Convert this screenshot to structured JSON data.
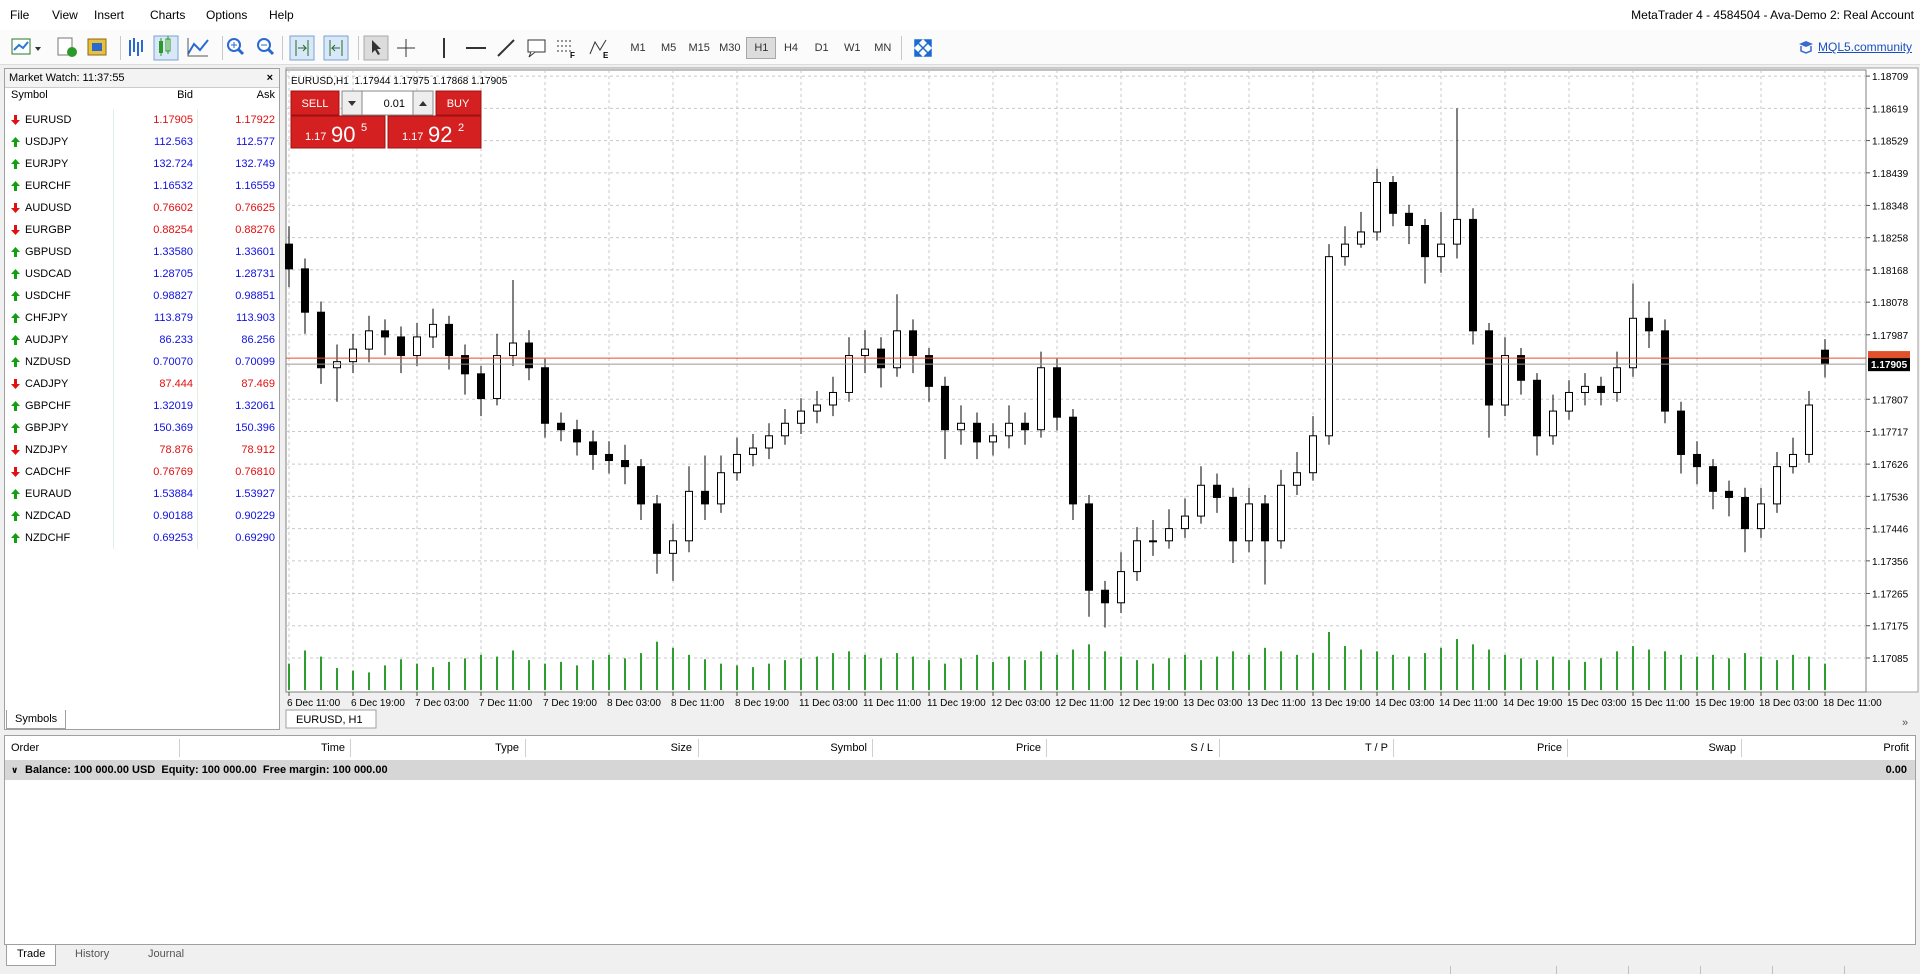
{
  "menu": [
    "File",
    "View",
    "Insert",
    "Charts",
    "Options",
    "Help"
  ],
  "window_title": "MetaTrader 4 - 4584504 - Ava-Demo 2: Real Account",
  "toolbar": {
    "timeframes": [
      "M1",
      "M5",
      "M15",
      "M30",
      "H1",
      "H4",
      "D1",
      "W1",
      "MN"
    ],
    "active": "H1",
    "community_link": "MQL5.community"
  },
  "market_watch": {
    "title": "Market Watch: 11:37:55",
    "columns": [
      "Symbol",
      "Bid",
      "Ask"
    ],
    "tab": "Symbols",
    "rows": [
      {
        "symbol": "EURUSD",
        "direction": "down",
        "bid": "1.17905",
        "ask": "1.17922"
      },
      {
        "symbol": "USDJPY",
        "direction": "up",
        "bid": "112.563",
        "ask": "112.577"
      },
      {
        "symbol": "EURJPY",
        "direction": "up",
        "bid": "132.724",
        "ask": "132.749"
      },
      {
        "symbol": "EURCHF",
        "direction": "up",
        "bid": "1.16532",
        "ask": "1.16559"
      },
      {
        "symbol": "AUDUSD",
        "direction": "down",
        "bid": "0.76602",
        "ask": "0.76625"
      },
      {
        "symbol": "EURGBP",
        "direction": "down",
        "bid": "0.88254",
        "ask": "0.88276"
      },
      {
        "symbol": "GBPUSD",
        "direction": "up",
        "bid": "1.33580",
        "ask": "1.33601"
      },
      {
        "symbol": "USDCAD",
        "direction": "up",
        "bid": "1.28705",
        "ask": "1.28731"
      },
      {
        "symbol": "USDCHF",
        "direction": "up",
        "bid": "0.98827",
        "ask": "0.98851"
      },
      {
        "symbol": "CHFJPY",
        "direction": "up",
        "bid": "113.879",
        "ask": "113.903"
      },
      {
        "symbol": "AUDJPY",
        "direction": "up",
        "bid": "86.233",
        "ask": "86.256"
      },
      {
        "symbol": "NZDUSD",
        "direction": "up",
        "bid": "0.70070",
        "ask": "0.70099"
      },
      {
        "symbol": "CADJPY",
        "direction": "down",
        "bid": "87.444",
        "ask": "87.469"
      },
      {
        "symbol": "GBPCHF",
        "direction": "up",
        "bid": "1.32019",
        "ask": "1.32061"
      },
      {
        "symbol": "GBPJPY",
        "direction": "up",
        "bid": "150.369",
        "ask": "150.396"
      },
      {
        "symbol": "NZDJPY",
        "direction": "down",
        "bid": "78.876",
        "ask": "78.912"
      },
      {
        "symbol": "CADCHF",
        "direction": "down",
        "bid": "0.76769",
        "ask": "0.76810"
      },
      {
        "symbol": "EURAUD",
        "direction": "up",
        "bid": "1.53884",
        "ask": "1.53927"
      },
      {
        "symbol": "NZDCAD",
        "direction": "up",
        "bid": "0.90188",
        "ask": "0.90229"
      },
      {
        "symbol": "NZDCHF",
        "direction": "up",
        "bid": "0.69253",
        "ask": "0.69290"
      }
    ]
  },
  "trade_panel": {
    "sell": "SELL",
    "buy": "BUY",
    "lot": "0.01",
    "sell_price": [
      "1.17",
      "90",
      "5"
    ],
    "buy_price": [
      "1.17",
      "92",
      "2"
    ]
  },
  "chart_data": {
    "type": "candlestick",
    "info": "EURUSD,H1  1.17944 1.17975 1.17868 1.17905",
    "tab": "EURUSD, H1",
    "colors": {
      "bull": "#ffffff",
      "bear": "#000000",
      "outline": "#000000",
      "volume": "#2f9e2f",
      "bid_line": "#e0502a",
      "grid": "#c8c8c8"
    },
    "grid": true,
    "x": [
      "6 Dec 11:00",
      null,
      null,
      null,
      "6 Dec 19:00",
      null,
      null,
      null,
      "7 Dec 03:00",
      null,
      null,
      null,
      "7 Dec 11:00",
      null,
      null,
      null,
      "7 Dec 19:00",
      null,
      null,
      null,
      "8 Dec 03:00",
      null,
      null,
      null,
      "8 Dec 11:00",
      null,
      null,
      null,
      "8 Dec 19:00",
      null,
      null,
      null,
      "11 Dec 03:00",
      null,
      null,
      null,
      "11 Dec 11:00",
      null,
      null,
      null,
      "11 Dec 19:00",
      null,
      null,
      null,
      "12 Dec 03:00",
      null,
      null,
      null,
      "12 Dec 11:00",
      null,
      null,
      null,
      "12 Dec 19:00",
      null,
      null,
      null,
      "13 Dec 03:00",
      null,
      null,
      null,
      "13 Dec 11:00",
      null,
      null,
      null,
      "13 Dec 19:00",
      null,
      null,
      null,
      "14 Dec 03:00",
      null,
      null,
      null,
      "14 Dec 11:00",
      null,
      null,
      null,
      "14 Dec 19:00",
      null,
      null,
      null,
      "15 Dec 03:00",
      null,
      null,
      null,
      "15 Dec 11:00",
      null,
      null,
      null,
      "15 Dec 19:00",
      null,
      null,
      null,
      "18 Dec 03:00",
      null,
      null,
      null,
      "18 Dec 11:00"
    ],
    "open": [
      1.1824,
      1.18171,
      1.1805,
      1.17895,
      1.17912,
      1.17947,
      1.17998,
      1.17981,
      1.17929,
      1.17981,
      1.18016,
      1.17929,
      1.17878,
      1.17809,
      1.17929,
      1.17964,
      1.17895,
      1.1774,
      1.17722,
      1.17688,
      1.17653,
      1.17636,
      1.17619,
      1.17515,
      1.17377,
      1.17412,
      1.1755,
      1.17515,
      1.17602,
      1.17653,
      1.17671,
      1.17705,
      1.1774,
      1.17774,
      1.17791,
      1.17826,
      1.17929,
      1.17947,
      1.17895,
      1.17998,
      1.17929,
      1.17843,
      1.17722,
      1.1774,
      1.17688,
      1.17705,
      1.1774,
      1.17722,
      1.17895,
      1.17757,
      1.17515,
      1.17274,
      1.17239,
      1.17326,
      1.17412,
      1.17412,
      1.17446,
      1.17481,
      1.17567,
      1.17533,
      1.17412,
      1.17515,
      1.17412,
      1.17567,
      1.17602,
      1.17705,
      1.18205,
      1.1824,
      1.18274,
      1.18412,
      1.18326,
      1.18292,
      1.18205,
      1.1824,
      1.18309,
      1.17998,
      1.17791,
      1.17929,
      1.1786,
      1.17705,
      1.17774,
      1.17826,
      1.17843,
      1.17826,
      1.17895,
      1.18033,
      1.17998,
      1.17774,
      1.17653,
      1.17619,
      1.1755,
      1.17533,
      1.17446,
      1.17515,
      1.17619,
      1.17653,
      1.17944
    ],
    "high": [
      1.1829,
      1.182,
      1.1808,
      1.1796,
      1.1799,
      1.1804,
      1.1803,
      1.1801,
      1.1802,
      1.1806,
      1.1804,
      1.1796,
      1.179,
      1.1799,
      1.1814,
      1.18,
      1.1792,
      1.1777,
      1.1775,
      1.1772,
      1.1769,
      1.1768,
      1.1764,
      1.1754,
      1.1746,
      1.1762,
      1.1765,
      1.1765,
      1.177,
      1.1771,
      1.1774,
      1.1778,
      1.1781,
      1.1783,
      1.1787,
      1.1798,
      1.18,
      1.1798,
      1.181,
      1.1803,
      1.1795,
      1.1787,
      1.1779,
      1.1777,
      1.1774,
      1.1779,
      1.1777,
      1.1794,
      1.1792,
      1.1778,
      1.1754,
      1.173,
      1.1738,
      1.1745,
      1.1747,
      1.175,
      1.1753,
      1.1762,
      1.176,
      1.1756,
      1.1756,
      1.1754,
      1.1761,
      1.1766,
      1.1776,
      1.1824,
      1.1829,
      1.1833,
      1.1845,
      1.1843,
      1.1835,
      1.1831,
      1.1833,
      1.18619,
      1.1834,
      1.1802,
      1.1798,
      1.1795,
      1.1788,
      1.1782,
      1.1786,
      1.1788,
      1.1787,
      1.1794,
      1.1813,
      1.1808,
      1.1803,
      1.178,
      1.1769,
      1.1764,
      1.1758,
      1.1756,
      1.1756,
      1.1766,
      1.177,
      1.1783,
      1.17975
    ],
    "low": [
      1.1812,
      1.1799,
      1.1785,
      1.178,
      1.1788,
      1.1791,
      1.1793,
      1.1788,
      1.179,
      1.1795,
      1.1789,
      1.1782,
      1.1776,
      1.1779,
      1.179,
      1.1786,
      1.177,
      1.1769,
      1.1765,
      1.1761,
      1.176,
      1.1757,
      1.1747,
      1.1732,
      1.173,
      1.1738,
      1.1747,
      1.1749,
      1.1758,
      1.1762,
      1.1764,
      1.1768,
      1.1771,
      1.1774,
      1.1776,
      1.178,
      1.1788,
      1.1784,
      1.1787,
      1.1788,
      1.178,
      1.1764,
      1.1768,
      1.1764,
      1.1765,
      1.1767,
      1.1768,
      1.177,
      1.1772,
      1.1747,
      1.172,
      1.1717,
      1.1721,
      1.173,
      1.1737,
      1.1739,
      1.1742,
      1.1746,
      1.1749,
      1.1735,
      1.1738,
      1.1729,
      1.1739,
      1.1754,
      1.1758,
      1.1768,
      1.1818,
      1.1823,
      1.1825,
      1.1829,
      1.1824,
      1.1813,
      1.1816,
      1.182,
      1.1796,
      1.177,
      1.1776,
      1.1782,
      1.1765,
      1.1768,
      1.1775,
      1.1779,
      1.1779,
      1.178,
      1.1787,
      1.1795,
      1.1774,
      1.176,
      1.1757,
      1.175,
      1.1748,
      1.1738,
      1.1742,
      1.1749,
      1.176,
      1.1763,
      1.17868
    ],
    "close": [
      1.18171,
      1.1805,
      1.17895,
      1.17912,
      1.17947,
      1.17998,
      1.17981,
      1.17929,
      1.17981,
      1.18016,
      1.17929,
      1.17878,
      1.17809,
      1.17929,
      1.17964,
      1.17895,
      1.1774,
      1.17722,
      1.17688,
      1.17653,
      1.17636,
      1.17619,
      1.17515,
      1.17377,
      1.17412,
      1.1755,
      1.17515,
      1.17602,
      1.17653,
      1.17671,
      1.17705,
      1.1774,
      1.17774,
      1.17791,
      1.17826,
      1.17929,
      1.17947,
      1.17895,
      1.17998,
      1.17929,
      1.17843,
      1.17722,
      1.1774,
      1.17688,
      1.17705,
      1.1774,
      1.17722,
      1.17895,
      1.17757,
      1.17515,
      1.17274,
      1.17239,
      1.17326,
      1.17412,
      1.17412,
      1.17446,
      1.17481,
      1.17567,
      1.17533,
      1.17412,
      1.17515,
      1.17412,
      1.17567,
      1.17602,
      1.17705,
      1.18205,
      1.1824,
      1.18274,
      1.18412,
      1.18326,
      1.18292,
      1.18205,
      1.1824,
      1.18309,
      1.17998,
      1.17791,
      1.17929,
      1.1786,
      1.17705,
      1.17774,
      1.17826,
      1.17843,
      1.17826,
      1.17895,
      1.18033,
      1.17998,
      1.17774,
      1.17653,
      1.17619,
      1.1755,
      1.17533,
      1.17446,
      1.17515,
      1.17619,
      1.17653,
      1.17791,
      1.17905
    ],
    "volume": [
      30,
      45,
      38,
      25,
      22,
      20,
      28,
      35,
      30,
      26,
      32,
      36,
      40,
      38,
      45,
      34,
      30,
      32,
      28,
      34,
      40,
      36,
      42,
      55,
      48,
      40,
      35,
      30,
      28,
      26,
      30,
      34,
      36,
      38,
      42,
      44,
      40,
      36,
      42,
      38,
      34,
      30,
      36,
      40,
      32,
      38,
      34,
      44,
      40,
      46,
      52,
      44,
      38,
      34,
      30,
      36,
      40,
      34,
      38,
      44,
      40,
      48,
      44,
      40,
      42,
      66,
      50,
      46,
      44,
      40,
      38,
      42,
      48,
      58,
      52,
      46,
      40,
      36,
      34,
      38,
      34,
      32,
      36,
      44,
      50,
      46,
      44,
      40,
      38,
      40,
      36,
      42,
      38,
      34,
      40,
      38,
      30
    ],
    "ylim": [
      1.1699,
      1.18726
    ],
    "yticks": [
      1.18709,
      1.18619,
      1.18529,
      1.18439,
      1.18348,
      1.18258,
      1.18168,
      1.18078,
      1.17987,
      1.17807,
      1.17717,
      1.17626,
      1.17536,
      1.17446,
      1.17356,
      1.17265,
      1.17175,
      1.17085
    ],
    "bid": 1.17905,
    "ask": 1.17922
  },
  "terminal": {
    "columns": [
      "Order",
      "Time",
      "Type",
      "Size",
      "Symbol",
      "Price",
      "S / L",
      "T / P",
      "Price",
      "Swap",
      "Profit"
    ],
    "balance": "Balance: 100 000.00 USD  Equity: 100 000.00  Free margin: 100 000.00",
    "profit": "0.00",
    "tabs": [
      "Trade",
      "History",
      "Journal"
    ]
  }
}
